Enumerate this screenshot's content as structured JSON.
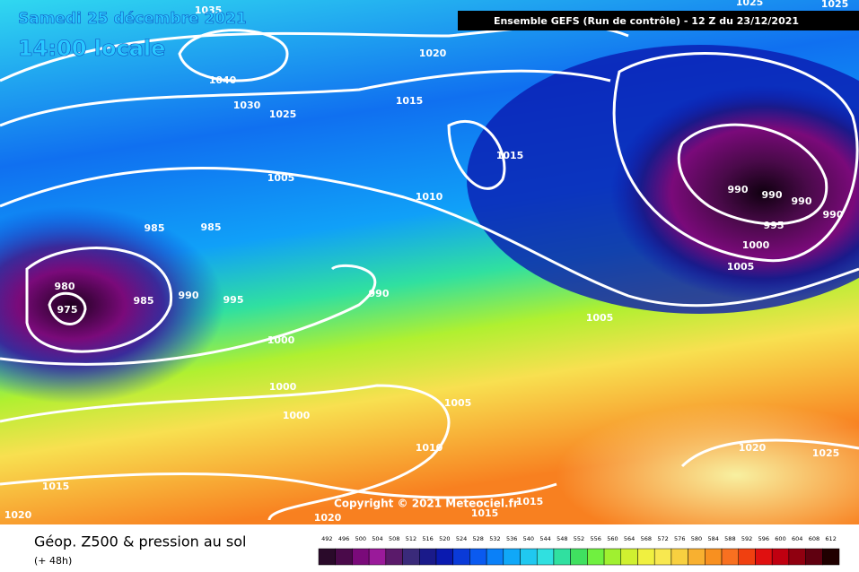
{
  "header": {
    "date": "Samedi 25 décembre 2021",
    "time": "14:00 locale",
    "run": "Ensemble GEFS  (Run de contrôle)  - 12 Z du 23/12/2021"
  },
  "isobar_labels": [
    "1035",
    "1040",
    "1030",
    "1025",
    "1020",
    "1015",
    "1015",
    "1005",
    "1010",
    "985",
    "985",
    "980",
    "975",
    "985",
    "990",
    "995",
    "990",
    "1000",
    "1000",
    "1000",
    "1005",
    "1010",
    "1005",
    "990",
    "990",
    "990",
    "990",
    "995",
    "1000",
    "1005",
    "1015",
    "1020",
    "1020",
    "1015",
    "1015",
    "1020",
    "1025",
    "1025",
    "1025"
  ],
  "copyright": "Copyright © 2021 Meteociel.fr",
  "legend": {
    "title": "Géop. Z500 & pression au sol",
    "subtitle": "(+ 48h)",
    "scale": [
      492,
      496,
      500,
      504,
      508,
      512,
      516,
      520,
      524,
      528,
      532,
      536,
      540,
      544,
      548,
      552,
      556,
      560,
      564,
      568,
      572,
      576,
      580,
      584,
      588,
      592,
      596,
      600,
      604,
      608,
      612
    ],
    "colors": [
      "#2a0a2a",
      "#4a0a4a",
      "#7a0a7a",
      "#9a1a9a",
      "#5a1a6a",
      "#3a2a7a",
      "#1a1a8a",
      "#0a1ab0",
      "#0a3ad8",
      "#0a5af0",
      "#0a80f8",
      "#10a8f8",
      "#20c8f0",
      "#30e0e0",
      "#30e0a0",
      "#40e060",
      "#70f040",
      "#a0f030",
      "#d0f030",
      "#f0f040",
      "#f8e850",
      "#f8d040",
      "#f8b030",
      "#f89020",
      "#f87020",
      "#f04010",
      "#e01010",
      "#c00010",
      "#900010",
      "#600010",
      "#200000"
    ]
  }
}
